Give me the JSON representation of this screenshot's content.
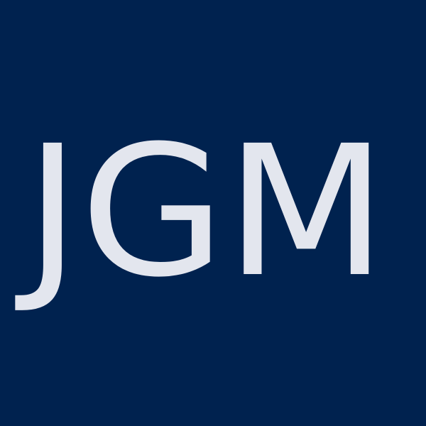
{
  "logo": {
    "text": "JGM",
    "background_color": "#00224f",
    "text_color": "#e3e6ee"
  }
}
